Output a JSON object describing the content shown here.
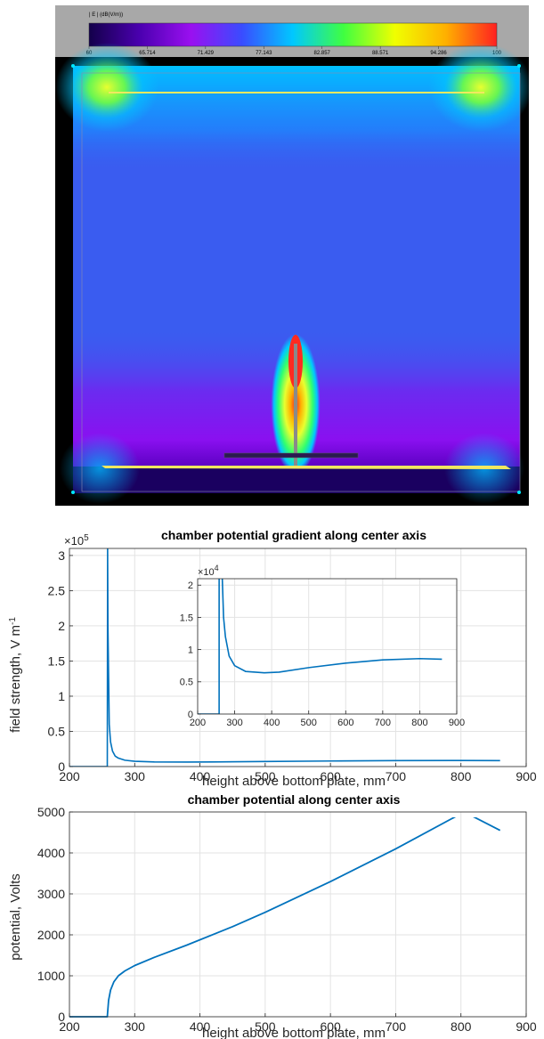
{
  "simulation": {
    "colorbar": {
      "title": "| E | (dB(V/m))",
      "ticks": [
        "60",
        "65.714",
        "71.429",
        "77.143",
        "82.857",
        "88.571",
        "94.286",
        "100"
      ],
      "colors": [
        "#13004a",
        "#4b00b0",
        "#9a10f0",
        "#3a4cff",
        "#00c8ff",
        "#40ff40",
        "#f0ff00",
        "#ffb000",
        "#ff2020"
      ]
    },
    "field_colors": {
      "background": "#3a5cf0",
      "hotspot": "#e8ff30",
      "tip": "#ff2a20",
      "purple": "#7a1ef0",
      "dark": "#1a0060",
      "plate": "#f0e860"
    }
  },
  "chart_data": [
    {
      "type": "line",
      "title": "chamber potential gradient along center axis",
      "xlabel": "height above bottom plate, mm",
      "ylabel": "field strength, V m",
      "ylabel_sup": "-1",
      "y_multiplier": "×10",
      "y_multiplier_exp": "5",
      "xlim": [
        200,
        900
      ],
      "ylim": [
        0,
        310000
      ],
      "xticks": [
        "200",
        "300",
        "400",
        "500",
        "600",
        "700",
        "800",
        "900"
      ],
      "yticks": [
        "0",
        "0.5",
        "1",
        "1.5",
        "2",
        "2.5",
        "3"
      ],
      "ytick_values": [
        0,
        50000,
        100000,
        150000,
        200000,
        250000,
        300000
      ],
      "grid": true,
      "color": "#0072bd",
      "x": [
        200,
        258,
        258.5,
        259,
        261,
        263,
        266,
        270,
        275,
        285,
        300,
        330,
        380,
        420,
        500,
        600,
        700,
        800,
        860
      ],
      "y": [
        0,
        0,
        310000,
        200000,
        60000,
        35000,
        22000,
        15000,
        12000,
        9000,
        7500,
        6600,
        6400,
        6500,
        7200,
        7900,
        8400,
        8600,
        8500
      ],
      "inset": {
        "y_multiplier": "×10",
        "y_multiplier_exp": "4",
        "xlim": [
          200,
          900
        ],
        "ylim": [
          0,
          21000
        ],
        "xticks": [
          "200",
          "300",
          "400",
          "500",
          "600",
          "700",
          "800",
          "900"
        ],
        "yticks": [
          "0",
          "0.5",
          "1",
          "1.5",
          "2"
        ],
        "ytick_values": [
          0,
          5000,
          10000,
          15000,
          20000
        ]
      }
    },
    {
      "type": "line",
      "title": "chamber potential along center axis",
      "xlabel": "height above bottom plate, mm",
      "ylabel": "potential, Volts",
      "xlim": [
        200,
        900
      ],
      "ylim": [
        0,
        5000
      ],
      "xticks": [
        "200",
        "300",
        "400",
        "500",
        "600",
        "700",
        "800",
        "900"
      ],
      "yticks": [
        "0",
        "1000",
        "2000",
        "3000",
        "4000",
        "5000"
      ],
      "ytick_values": [
        0,
        1000,
        2000,
        3000,
        4000,
        5000
      ],
      "grid": true,
      "color": "#0072bd",
      "x": [
        200,
        258,
        260,
        263,
        268,
        275,
        285,
        300,
        330,
        380,
        450,
        500,
        600,
        700,
        805,
        860
      ],
      "y": [
        0,
        0,
        400,
        650,
        850,
        1000,
        1120,
        1250,
        1450,
        1750,
        2200,
        2550,
        3300,
        4100,
        5000,
        4550
      ]
    }
  ]
}
